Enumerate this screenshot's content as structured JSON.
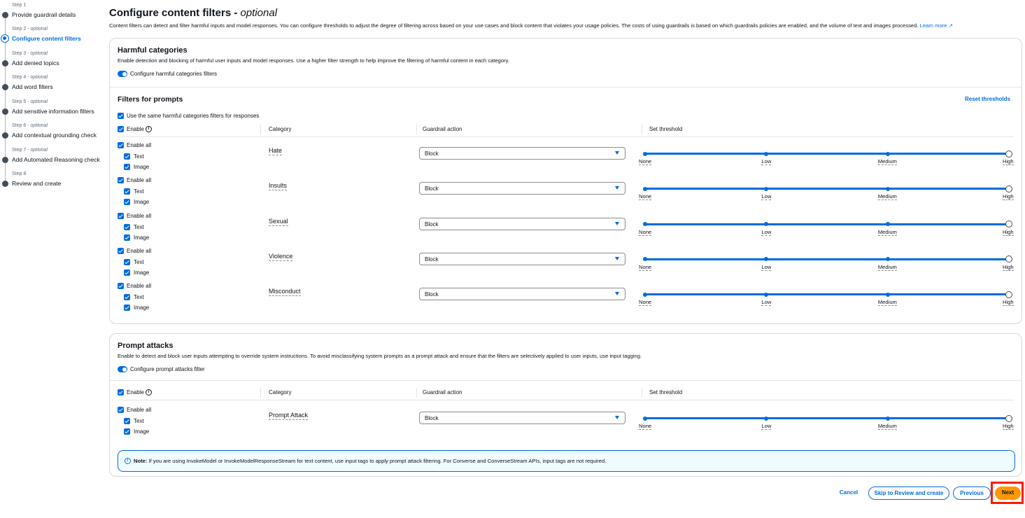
{
  "steps": [
    {
      "num": "Step 1",
      "optional": "",
      "label": "Provide guardrail details",
      "active": false
    },
    {
      "num": "Step 2",
      "optional": "optional",
      "label": "Configure content filters",
      "active": true
    },
    {
      "num": "Step 3",
      "optional": "optional",
      "label": "Add denied topics",
      "active": false
    },
    {
      "num": "Step 4",
      "optional": "optional",
      "label": "Add word filters",
      "active": false
    },
    {
      "num": "Step 5",
      "optional": "optional",
      "label": "Add sensitive information filters",
      "active": false
    },
    {
      "num": "Step 6",
      "optional": "optional",
      "label": "Add contextual grounding check",
      "active": false
    },
    {
      "num": "Step 7",
      "optional": "optional",
      "label": "Add Automated Reasoning check",
      "active": false
    },
    {
      "num": "Step 8",
      "optional": "",
      "label": "Review and create",
      "active": false
    }
  ],
  "header": {
    "title": "Configure content filters - ",
    "title_optional": "optional",
    "description": "Content filters can detect and filter harmful inputs and model responses. You can configure thresholds to adjust the degree of filtering across based on your use cases and block content that violates your usage policies. The costs of using guardrails is based on which guardrails policies are enabled, and the volume of text and images processed. ",
    "learn_more": "Learn more"
  },
  "harmful": {
    "title": "Harmful categories",
    "description": "Enable detection and blocking of harmful user inputs and model responses. Use a higher filter strength to help improve the filtering of harmful content in each category.",
    "toggle_label": "Configure harmful categories filters",
    "filters_title": "Filters for prompts",
    "reset": "Reset thresholds",
    "same_filters": "Use the same harmful categories filters for responses",
    "columns": {
      "enable": "Enable",
      "category": "Category",
      "action": "Guardrail action",
      "threshold": "Set threshold"
    },
    "rows": [
      {
        "category": "Hate",
        "action": "Block",
        "threshold": "High"
      },
      {
        "category": "Insults",
        "action": "Block",
        "threshold": "High"
      },
      {
        "category": "Sexual",
        "action": "Block",
        "threshold": "High"
      },
      {
        "category": "Violence",
        "action": "Block",
        "threshold": "High"
      },
      {
        "category": "Misconduct",
        "action": "Block",
        "threshold": "High"
      }
    ]
  },
  "row_labels": {
    "enable_all": "Enable all",
    "text": "Text",
    "image": "Image"
  },
  "threshold_levels": [
    "None",
    "Low",
    "Medium",
    "High"
  ],
  "prompt": {
    "title": "Prompt attacks",
    "description": "Enable to detect and block user inputs attempting to override system instructions. To avoid misclassifying system prompts as a prompt attack and ensure that the filters are selectively applied to user inputs, use input tagging.",
    "toggle_label": "Configure prompt attacks filter",
    "columns": {
      "enable": "Enable",
      "category": "Category",
      "action": "Guardrail action",
      "threshold": "Set threshold"
    },
    "rows": [
      {
        "category": "Prompt Attack",
        "action": "Block",
        "threshold": "High"
      }
    ],
    "note_bold": "Note:",
    "note": " If you are using InvokeModel or InvokeModelResponseStream for text content, use input tags to apply prompt attack filtering. For Converse and ConverseStream APIs, input tags are not required."
  },
  "footer": {
    "cancel": "Cancel",
    "skip": "Skip to Review and create",
    "previous": "Previous",
    "next": "Next"
  },
  "colors": {
    "accent": "#006ce0",
    "primary_button": "#ff9900",
    "highlight": "#ff1a00"
  }
}
